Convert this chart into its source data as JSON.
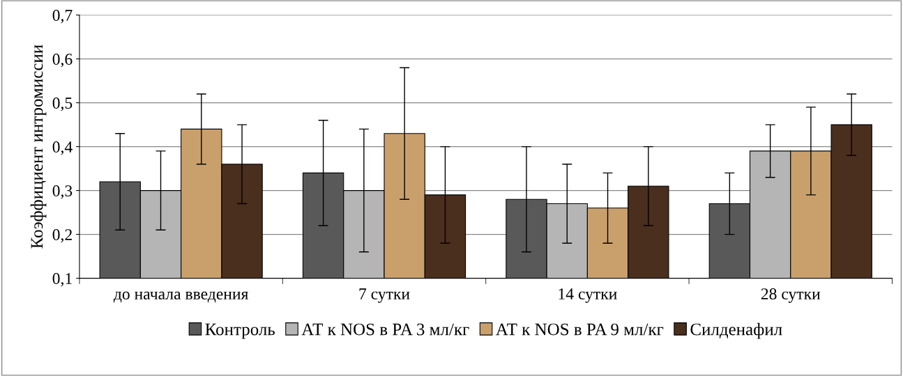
{
  "chart_data": {
    "type": "bar",
    "ylabel": "Коэффициент интромиссии",
    "categories": [
      "до начала введения",
      "7 сутки",
      "14 сутки",
      "28 сутки"
    ],
    "series": [
      {
        "name": "Контроль",
        "color": "#595959",
        "values": [
          0.32,
          0.34,
          0.28,
          0.27
        ],
        "errors": [
          0.11,
          0.12,
          0.12,
          0.07
        ]
      },
      {
        "name": "АТ к NOS в PA 3 мл/кг",
        "color": "#b5b5b5",
        "values": [
          0.3,
          0.3,
          0.27,
          0.39
        ],
        "errors": [
          0.09,
          0.14,
          0.09,
          0.06
        ]
      },
      {
        "name": "АТ к NOS в PA 9 мл/кг",
        "color": "#c9a06c",
        "values": [
          0.44,
          0.43,
          0.26,
          0.39
        ],
        "errors": [
          0.08,
          0.15,
          0.08,
          0.1
        ]
      },
      {
        "name": "Силденафил",
        "color": "#4a2e1e",
        "values": [
          0.36,
          0.29,
          0.31,
          0.45
        ],
        "errors": [
          0.09,
          0.11,
          0.09,
          0.07
        ]
      }
    ],
    "ylim": [
      0.1,
      0.7
    ],
    "yticks": [
      {
        "value": 0.1,
        "label": "0,1"
      },
      {
        "value": 0.2,
        "label": "0,2"
      },
      {
        "value": 0.3,
        "label": "0,3"
      },
      {
        "value": 0.4,
        "label": "0,4"
      },
      {
        "value": 0.5,
        "label": "0,5"
      },
      {
        "value": 0.6,
        "label": "0,6"
      },
      {
        "value": 0.7,
        "label": "0,7"
      }
    ],
    "grid": "y",
    "legend": "bottom"
  }
}
